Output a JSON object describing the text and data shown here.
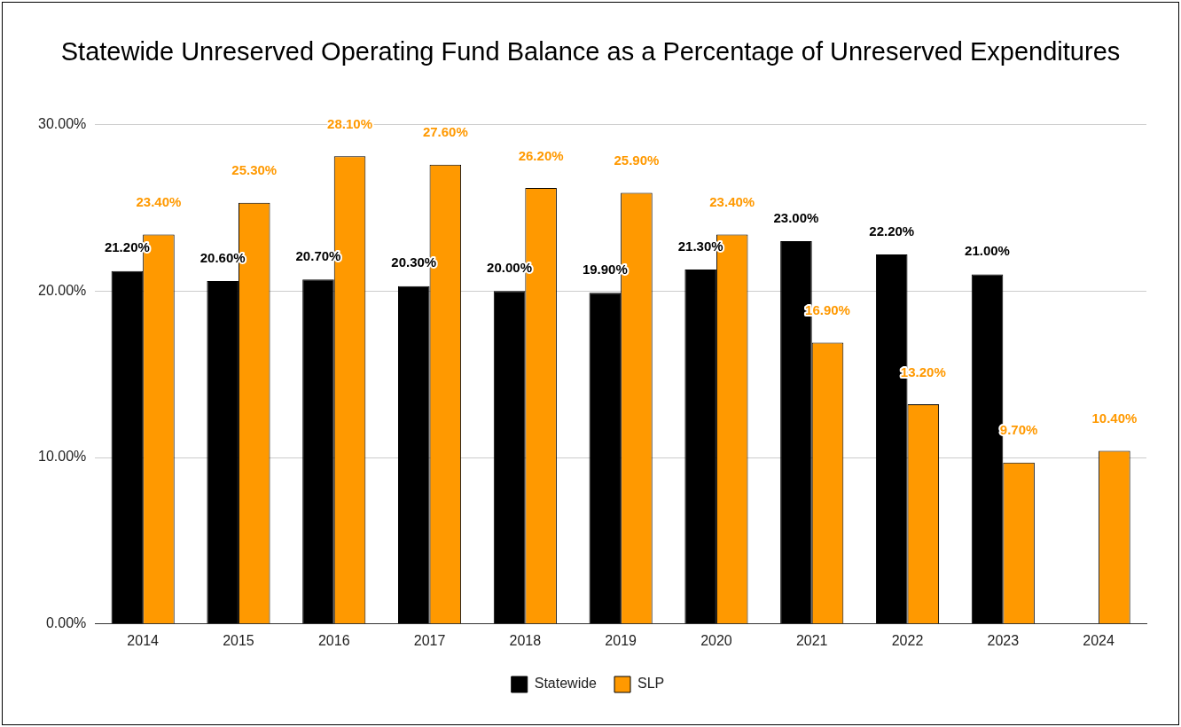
{
  "chart_data": {
    "type": "bar",
    "title": "Statewide Unreserved Operating Fund Balance as a Percentage of Unreserved Expenditures",
    "categories": [
      "2014",
      "2015",
      "2016",
      "2017",
      "2018",
      "2019",
      "2020",
      "2021",
      "2022",
      "2023",
      "2024"
    ],
    "series": [
      {
        "name": "Statewide",
        "color": "#000000",
        "values": [
          21.2,
          20.6,
          20.7,
          20.3,
          20.0,
          19.9,
          21.3,
          23.0,
          22.2,
          21.0,
          null
        ],
        "value_labels": [
          "21.20%",
          "20.60%",
          "20.70%",
          "20.30%",
          "20.00%",
          "19.90%",
          "21.30%",
          "23.00%",
          "22.20%",
          "21.00%",
          null
        ]
      },
      {
        "name": "SLP",
        "color": "#ff9900",
        "values": [
          23.4,
          25.3,
          28.1,
          27.6,
          26.2,
          25.9,
          23.4,
          16.9,
          13.2,
          9.7,
          10.4
        ],
        "value_labels": [
          "23.40%",
          "25.30%",
          "28.10%",
          "27.60%",
          "26.20%",
          "25.90%",
          "23.40%",
          "16.90%",
          "13.20%",
          "9.70%",
          "10.40%"
        ]
      }
    ],
    "ylim": [
      0,
      30
    ],
    "yticks": [
      {
        "value": 0,
        "label": "0.00%"
      },
      {
        "value": 10,
        "label": "10.00%"
      },
      {
        "value": 20,
        "label": "20.00%"
      },
      {
        "value": 30,
        "label": "30.00%"
      }
    ],
    "grid": "y",
    "legend": "bottom"
  }
}
